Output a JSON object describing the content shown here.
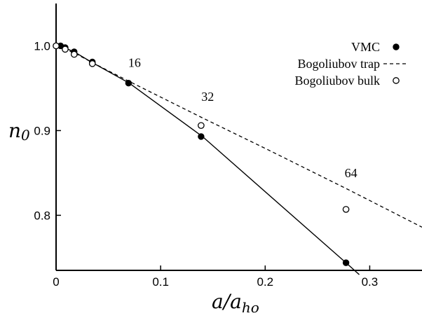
{
  "chart_data": {
    "type": "line",
    "xlabel": "a/a_ho",
    "ylabel": "n0",
    "xlim": [
      0,
      0.35
    ],
    "ylim": [
      0.735,
      1.05
    ],
    "x_ticks": [
      {
        "value": 0,
        "label": "0"
      },
      {
        "value": 0.1,
        "label": "0.1"
      },
      {
        "value": 0.2,
        "label": "0.2"
      },
      {
        "value": 0.3,
        "label": "0.3"
      }
    ],
    "y_ticks": [
      {
        "value": 0.8,
        "label": "0.8"
      },
      {
        "value": 0.9,
        "label": "0.9"
      },
      {
        "value": 1.0,
        "label": "1.0"
      }
    ],
    "legend_position": "top-right",
    "series": [
      {
        "name": "VMC",
        "marker": "filled-circle",
        "line": "solid",
        "x": [
          0.0043,
          0.0087,
          0.0173,
          0.0347,
          0.0693,
          0.1387,
          0.2773
        ],
        "y": [
          1.0,
          0.998,
          0.993,
          0.981,
          0.956,
          0.893,
          0.744
        ],
        "curve_x": [
          0,
          0.01,
          0.02,
          0.035,
          0.07,
          0.14,
          0.2773,
          0.29
        ],
        "curve_y": [
          1.0,
          0.997,
          0.991,
          0.98,
          0.956,
          0.893,
          0.744,
          0.73
        ]
      },
      {
        "name": "Bogoliubov trap",
        "marker": "none",
        "line": "dashed",
        "x": [
          0.002,
          0.02,
          0.035,
          0.07,
          0.14,
          0.2,
          0.28,
          0.35
        ],
        "y": [
          1.0,
          0.99,
          0.98,
          0.958,
          0.915,
          0.879,
          0.83,
          0.786
        ]
      },
      {
        "name": "Bogoliubov bulk",
        "marker": "open-circle",
        "line": "none",
        "x": [
          0.0,
          0.0087,
          0.0173,
          0.0347,
          0.1387,
          0.2773
        ],
        "y": [
          1.0,
          0.996,
          0.99,
          0.979,
          0.906,
          0.807
        ]
      }
    ],
    "annotations": [
      {
        "text": "16",
        "x": 0.075,
        "y": 0.975
      },
      {
        "text": "32",
        "x": 0.145,
        "y": 0.935
      },
      {
        "text": "64",
        "x": 0.282,
        "y": 0.845
      }
    ]
  }
}
